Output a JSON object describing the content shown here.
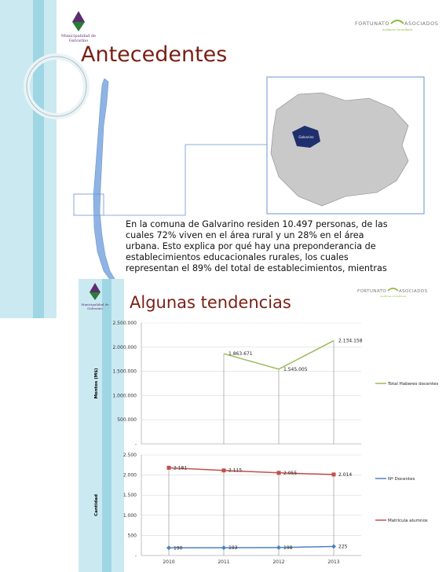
{
  "municipality": [
    "Municipalidad de",
    "Galvarino"
  ],
  "brand": {
    "left": "FORTUNATO",
    "right": "ASOCIADOS",
    "tagline": "Auditores Consultores"
  },
  "slide1": {
    "title": "Antecedentes",
    "map_label": "Galvarino",
    "paragraph": [
      "En la comuna de Galvarino residen 10.497 personas, de las",
      "cuales 72% viven en el área rural y un 28% en el área",
      "urbana. Esto explica por qué hay una preponderancia de",
      "establecimientos educacionales rurales, los cuales",
      "representan el 89% del total de establecimientos, mientras"
    ]
  },
  "slide2": {
    "title": "Algunas tendencias"
  },
  "chart_data": [
    {
      "type": "line",
      "y_label": "Montos (M$)",
      "ylim": [
        0,
        2500000
      ],
      "yticks": [
        {
          "value": 0,
          "label": "-"
        },
        {
          "value": 500000,
          "label": "500.000"
        },
        {
          "value": 1000000,
          "label": "1.000.000"
        },
        {
          "value": 1500000,
          "label": "1.500.000"
        },
        {
          "value": 2000000,
          "label": "2.000.000"
        },
        {
          "value": 2500000,
          "label": "2.500.000"
        }
      ],
      "grid": true,
      "series": [
        {
          "name": "Total Haberes docentes",
          "color": "#9bbb59",
          "marker": "none",
          "values": [
            null,
            1863671,
            1545005,
            2134158
          ],
          "value_labels": [
            null,
            "1.863.671",
            "1.545.005",
            "2.134.158"
          ]
        }
      ]
    },
    {
      "type": "line",
      "y_label": "Cantidad",
      "categories": [
        "2010",
        "2011",
        "2012",
        "2013"
      ],
      "ylim": [
        0,
        2500
      ],
      "yticks": [
        {
          "value": 0,
          "label": "-"
        },
        500,
        {
          "value": 1000,
          "label": "1.000"
        },
        {
          "value": 1500,
          "label": "1.500"
        },
        {
          "value": 2000,
          "label": "2.000"
        },
        {
          "value": 2500,
          "label": "2.500"
        }
      ],
      "grid": true,
      "series": [
        {
          "name": "Nº Docentes",
          "color": "#4f81bd",
          "marker": "diamond",
          "values": [
            190,
            193,
            198,
            225
          ]
        },
        {
          "name": "Matrícula alumnos",
          "color": "#c0504d",
          "marker": "square",
          "values": [
            2181,
            2115,
            2055,
            2014
          ],
          "value_labels": [
            "2.181",
            "2.115",
            "2.055",
            "2.014"
          ]
        }
      ]
    }
  ]
}
